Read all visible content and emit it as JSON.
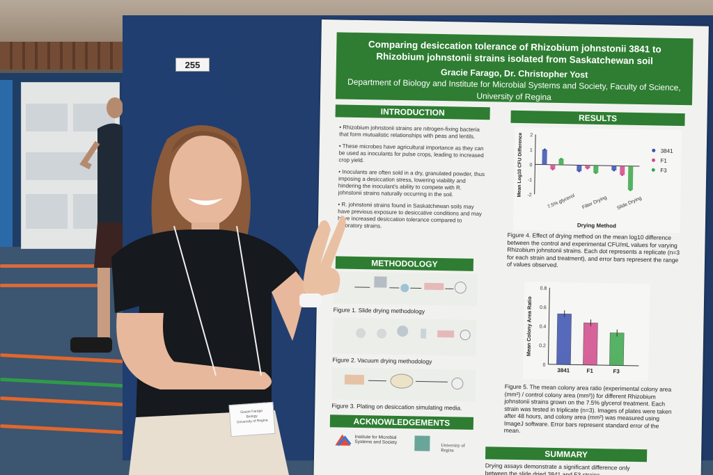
{
  "board": {
    "number": "255"
  },
  "poster": {
    "title_line1": "Comparing desiccation tolerance of Rhizobium johnstonii 3841 to",
    "title_line2": "Rhizobium johnstonii strains isolated from Saskatchewan soil",
    "authors": "Gracie Farago, Dr. Christopher Yost",
    "affiliation_line1": "Department of Biology and Institute for Microbial Systems and Society, Faculty of Science,",
    "affiliation_line2": "University of Regina",
    "sections": {
      "introduction": "INTRODUCTION",
      "results": "RESULTS",
      "methodology": "METHODOLOGY",
      "acknowledgements": "ACKNOWLEDGEMENTS",
      "summary": "SUMMARY"
    },
    "intro_bullets": [
      "• Rhizobium johnstonii strains are nitrogen-fixing bacteria that form mutualistic relationships with peas and lentils.",
      "• These microbes have agricultural importance as they can be used as inoculants for pulse crops, leading to increased crop yield.",
      "• Inoculants are often sold in a dry, granulated powder, thus imposing a desiccation stress, lowering viability and hindering the inoculant's ability to compete with R. johnstonii strains naturally occurring in the soil.",
      "• R. johnstonii strains found in Saskatchewan soils may have previous exposure to desiccative conditions and may have increased desiccation tolerance compared to laboratory strains."
    ],
    "method_figures": [
      "Figure 1. Slide drying methodology",
      "Figure 2. Vacuum drying methodology",
      "Figure 3. Plating on desiccation simulating media."
    ],
    "figure4_caption": "Figure 4. Effect of drying method on the mean log10 difference between the control and experimental CFU/mL values for varying Rhizobium johnstonii strains. Each dot represents a replicate (n=3 for each strain and treatment), and error bars represent the range of values observed.",
    "figure5_caption": "Figure 5. The mean colony area ratio (experimental colony area (mm²) / control colony area (mm²)) for different Rhizobium johnstonii strains grown on the 7.5% glycerol treatment. Each strain was tested in triplicate (n=3). Images of plates were taken after 48 hours, and colony area (mm²) was measured using ImageJ software. Error bars represent standard error of the mean.",
    "summary_text": "Drying assays demonstrate a significant difference only between the slide dried 3841 and F3 strains...",
    "ack_logos": [
      "Institute for Microbial Systems and Society",
      "University of Regina"
    ]
  },
  "badge": {
    "name": "Gracie Farago",
    "line2": "Biology",
    "line3": "University of Regina"
  },
  "chart_data": [
    {
      "type": "bar",
      "ylabel": "Mean Log10 CFU Difference",
      "xlabel": "Drying Method",
      "categories": [
        "7.5% glycerol",
        "Filter Drying",
        "Slide Drying"
      ],
      "series": [
        {
          "name": "3841",
          "color": "#3b50b0",
          "values": [
            1.0,
            -0.4,
            -0.3
          ]
        },
        {
          "name": "F1",
          "color": "#d04a8a",
          "values": [
            -0.3,
            -0.2,
            -0.6
          ]
        },
        {
          "name": "F3",
          "color": "#3aa64a",
          "values": [
            0.4,
            -0.5,
            -1.6
          ]
        }
      ],
      "ylim": [
        -2,
        2
      ],
      "legend": "right"
    },
    {
      "type": "bar",
      "ylabel": "Mean Colony Area Ratio",
      "categories": [
        "3841",
        "F1",
        "F3"
      ],
      "values": [
        0.53,
        0.44,
        0.34
      ],
      "colors": [
        "#3b50b0",
        "#d04a8a",
        "#3aa64a"
      ],
      "ylim": [
        0,
        0.8
      ],
      "yticks": [
        "0",
        "0.2",
        "0.4",
        "0.6",
        "0.8"
      ]
    }
  ]
}
